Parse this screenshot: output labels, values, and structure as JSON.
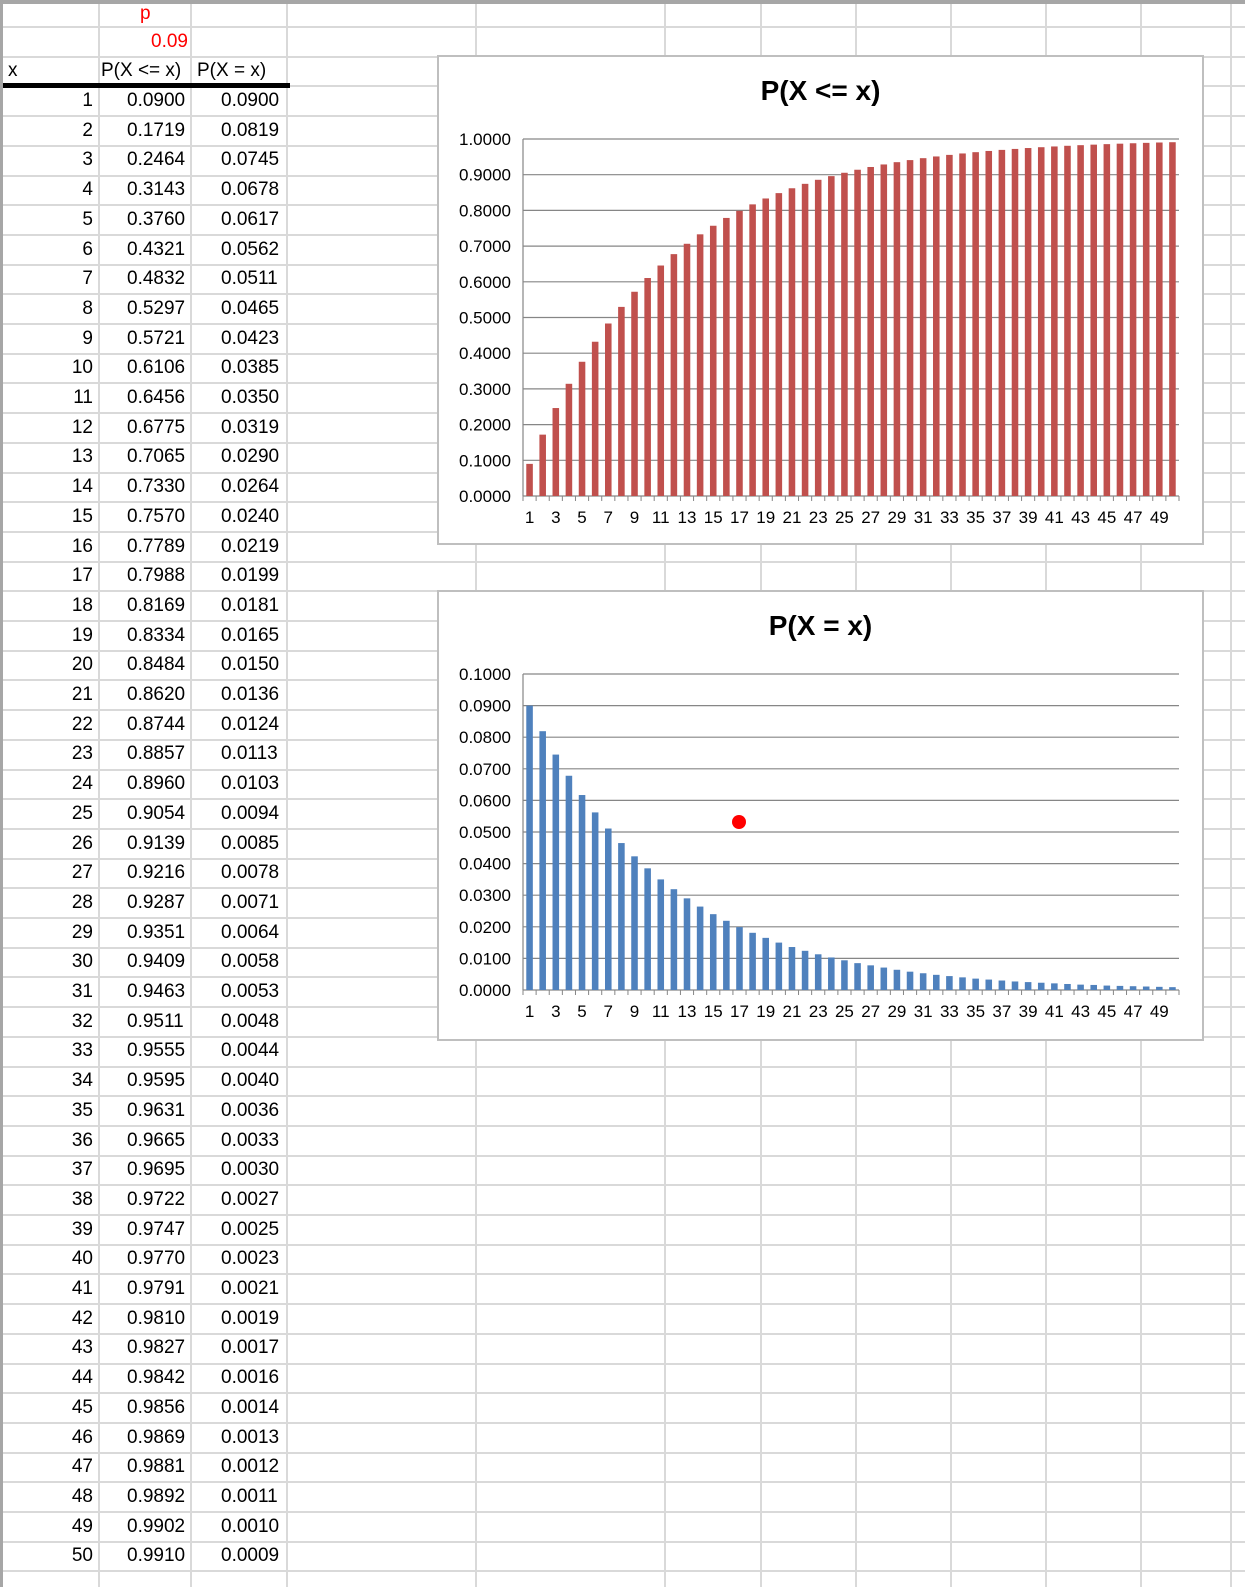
{
  "sheet": {
    "header_x": "x",
    "p_label": "p",
    "p_value": "0.09",
    "col_cdf_header": "P(X <= x)",
    "col_pmf_header": "P(X = x)",
    "rows": [
      {
        "x": "1",
        "cdf": "0.0900",
        "pmf": "0.0900"
      },
      {
        "x": "2",
        "cdf": "0.1719",
        "pmf": "0.0819"
      },
      {
        "x": "3",
        "cdf": "0.2464",
        "pmf": "0.0745"
      },
      {
        "x": "4",
        "cdf": "0.3143",
        "pmf": "0.0678"
      },
      {
        "x": "5",
        "cdf": "0.3760",
        "pmf": "0.0617"
      },
      {
        "x": "6",
        "cdf": "0.4321",
        "pmf": "0.0562"
      },
      {
        "x": "7",
        "cdf": "0.4832",
        "pmf": "0.0511"
      },
      {
        "x": "8",
        "cdf": "0.5297",
        "pmf": "0.0465"
      },
      {
        "x": "9",
        "cdf": "0.5721",
        "pmf": "0.0423"
      },
      {
        "x": "10",
        "cdf": "0.6106",
        "pmf": "0.0385"
      },
      {
        "x": "11",
        "cdf": "0.6456",
        "pmf": "0.0350"
      },
      {
        "x": "12",
        "cdf": "0.6775",
        "pmf": "0.0319"
      },
      {
        "x": "13",
        "cdf": "0.7065",
        "pmf": "0.0290"
      },
      {
        "x": "14",
        "cdf": "0.7330",
        "pmf": "0.0264"
      },
      {
        "x": "15",
        "cdf": "0.7570",
        "pmf": "0.0240"
      },
      {
        "x": "16",
        "cdf": "0.7789",
        "pmf": "0.0219"
      },
      {
        "x": "17",
        "cdf": "0.7988",
        "pmf": "0.0199"
      },
      {
        "x": "18",
        "cdf": "0.8169",
        "pmf": "0.0181"
      },
      {
        "x": "19",
        "cdf": "0.8334",
        "pmf": "0.0165"
      },
      {
        "x": "20",
        "cdf": "0.8484",
        "pmf": "0.0150"
      },
      {
        "x": "21",
        "cdf": "0.8620",
        "pmf": "0.0136"
      },
      {
        "x": "22",
        "cdf": "0.8744",
        "pmf": "0.0124"
      },
      {
        "x": "23",
        "cdf": "0.8857",
        "pmf": "0.0113"
      },
      {
        "x": "24",
        "cdf": "0.8960",
        "pmf": "0.0103"
      },
      {
        "x": "25",
        "cdf": "0.9054",
        "pmf": "0.0094"
      },
      {
        "x": "26",
        "cdf": "0.9139",
        "pmf": "0.0085"
      },
      {
        "x": "27",
        "cdf": "0.9216",
        "pmf": "0.0078"
      },
      {
        "x": "28",
        "cdf": "0.9287",
        "pmf": "0.0071"
      },
      {
        "x": "29",
        "cdf": "0.9351",
        "pmf": "0.0064"
      },
      {
        "x": "30",
        "cdf": "0.9409",
        "pmf": "0.0058"
      },
      {
        "x": "31",
        "cdf": "0.9463",
        "pmf": "0.0053"
      },
      {
        "x": "32",
        "cdf": "0.9511",
        "pmf": "0.0048"
      },
      {
        "x": "33",
        "cdf": "0.9555",
        "pmf": "0.0044"
      },
      {
        "x": "34",
        "cdf": "0.9595",
        "pmf": "0.0040"
      },
      {
        "x": "35",
        "cdf": "0.9631",
        "pmf": "0.0036"
      },
      {
        "x": "36",
        "cdf": "0.9665",
        "pmf": "0.0033"
      },
      {
        "x": "37",
        "cdf": "0.9695",
        "pmf": "0.0030"
      },
      {
        "x": "38",
        "cdf": "0.9722",
        "pmf": "0.0027"
      },
      {
        "x": "39",
        "cdf": "0.9747",
        "pmf": "0.0025"
      },
      {
        "x": "40",
        "cdf": "0.9770",
        "pmf": "0.0023"
      },
      {
        "x": "41",
        "cdf": "0.9791",
        "pmf": "0.0021"
      },
      {
        "x": "42",
        "cdf": "0.9810",
        "pmf": "0.0019"
      },
      {
        "x": "43",
        "cdf": "0.9827",
        "pmf": "0.0017"
      },
      {
        "x": "44",
        "cdf": "0.9842",
        "pmf": "0.0016"
      },
      {
        "x": "45",
        "cdf": "0.9856",
        "pmf": "0.0014"
      },
      {
        "x": "46",
        "cdf": "0.9869",
        "pmf": "0.0013"
      },
      {
        "x": "47",
        "cdf": "0.9881",
        "pmf": "0.0012"
      },
      {
        "x": "48",
        "cdf": "0.9892",
        "pmf": "0.0011"
      },
      {
        "x": "49",
        "cdf": "0.9902",
        "pmf": "0.0010"
      },
      {
        "x": "50",
        "cdf": "0.9910",
        "pmf": "0.0009"
      }
    ]
  },
  "colors": {
    "cdf_bar": "#C0504D",
    "pmf_bar": "#4F81BD",
    "p_text": "#FF0000",
    "marker": "#FF0000"
  },
  "chart_data": [
    {
      "type": "bar",
      "title": "P(X <= x)",
      "categories": [
        1,
        2,
        3,
        4,
        5,
        6,
        7,
        8,
        9,
        10,
        11,
        12,
        13,
        14,
        15,
        16,
        17,
        18,
        19,
        20,
        21,
        22,
        23,
        24,
        25,
        26,
        27,
        28,
        29,
        30,
        31,
        32,
        33,
        34,
        35,
        36,
        37,
        38,
        39,
        40,
        41,
        42,
        43,
        44,
        45,
        46,
        47,
        48,
        49,
        50
      ],
      "values": [
        0.09,
        0.1719,
        0.2464,
        0.3143,
        0.376,
        0.4321,
        0.4832,
        0.5297,
        0.5721,
        0.6106,
        0.6456,
        0.6775,
        0.7065,
        0.733,
        0.757,
        0.7789,
        0.7988,
        0.8169,
        0.8334,
        0.8484,
        0.862,
        0.8744,
        0.8857,
        0.896,
        0.9054,
        0.9139,
        0.9216,
        0.9287,
        0.9351,
        0.9409,
        0.9463,
        0.9511,
        0.9555,
        0.9595,
        0.9631,
        0.9665,
        0.9695,
        0.9722,
        0.9747,
        0.977,
        0.9791,
        0.981,
        0.9827,
        0.9842,
        0.9856,
        0.9869,
        0.9881,
        0.9892,
        0.9902,
        0.991
      ],
      "ylim": [
        0,
        1
      ],
      "ytick_labels": [
        "0.0000",
        "0.1000",
        "0.2000",
        "0.3000",
        "0.4000",
        "0.5000",
        "0.6000",
        "0.7000",
        "0.8000",
        "0.9000",
        "1.0000"
      ],
      "xtick_labels": [
        "1",
        "3",
        "5",
        "7",
        "9",
        "11",
        "13",
        "15",
        "17",
        "19",
        "21",
        "23",
        "25",
        "27",
        "29",
        "31",
        "33",
        "35",
        "37",
        "39",
        "41",
        "43",
        "45",
        "47",
        "49"
      ],
      "grid": true,
      "legend": "none"
    },
    {
      "type": "bar",
      "title": "P(X = x)",
      "categories": [
        1,
        2,
        3,
        4,
        5,
        6,
        7,
        8,
        9,
        10,
        11,
        12,
        13,
        14,
        15,
        16,
        17,
        18,
        19,
        20,
        21,
        22,
        23,
        24,
        25,
        26,
        27,
        28,
        29,
        30,
        31,
        32,
        33,
        34,
        35,
        36,
        37,
        38,
        39,
        40,
        41,
        42,
        43,
        44,
        45,
        46,
        47,
        48,
        49,
        50
      ],
      "values": [
        0.09,
        0.0819,
        0.0745,
        0.0678,
        0.0617,
        0.0562,
        0.0511,
        0.0465,
        0.0423,
        0.0385,
        0.035,
        0.0319,
        0.029,
        0.0264,
        0.024,
        0.0219,
        0.0199,
        0.0181,
        0.0165,
        0.015,
        0.0136,
        0.0124,
        0.0113,
        0.0103,
        0.0094,
        0.0085,
        0.0078,
        0.0071,
        0.0064,
        0.0058,
        0.0053,
        0.0048,
        0.0044,
        0.004,
        0.0036,
        0.0033,
        0.003,
        0.0027,
        0.0025,
        0.0023,
        0.0021,
        0.0019,
        0.0017,
        0.0016,
        0.0014,
        0.0013,
        0.0012,
        0.0011,
        0.001,
        0.0009
      ],
      "ylim": [
        0,
        0.1
      ],
      "ytick_labels": [
        "0.0000",
        "0.0100",
        "0.0200",
        "0.0300",
        "0.0400",
        "0.0500",
        "0.0600",
        "0.0700",
        "0.0800",
        "0.0900",
        "0.1000"
      ],
      "xtick_labels": [
        "1",
        "3",
        "5",
        "7",
        "9",
        "11",
        "13",
        "15",
        "17",
        "19",
        "21",
        "23",
        "25",
        "27",
        "29",
        "31",
        "33",
        "35",
        "37",
        "39",
        "41",
        "43",
        "45",
        "47",
        "49"
      ],
      "grid": true,
      "legend": "none"
    }
  ]
}
